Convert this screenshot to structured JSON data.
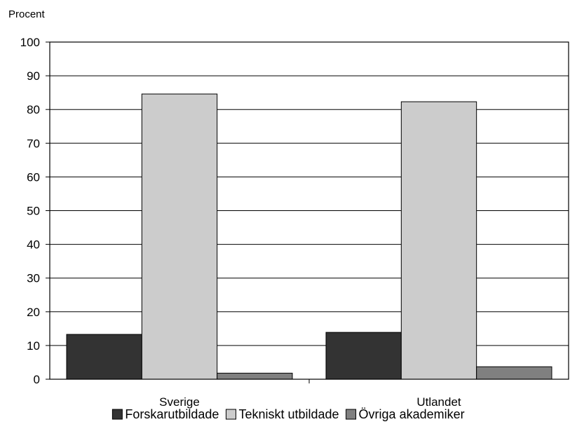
{
  "chart_data": {
    "type": "bar",
    "ylabel": "Procent",
    "categories": [
      "Sverige",
      "Utlandet"
    ],
    "ylim": [
      0,
      100
    ],
    "yticks": [
      0,
      10,
      20,
      30,
      40,
      50,
      60,
      70,
      80,
      90,
      100
    ],
    "grid": true,
    "legend_position": "bottom",
    "series": [
      {
        "name": "Forskarutbildade",
        "color": "#333333",
        "values": [
          13.3,
          13.9
        ]
      },
      {
        "name": "Tekniskt utbildade",
        "color": "#cccccc",
        "values": [
          84.6,
          82.3
        ]
      },
      {
        "name": "Övriga akademiker",
        "color": "#808080",
        "values": [
          1.8,
          3.7
        ]
      }
    ]
  }
}
